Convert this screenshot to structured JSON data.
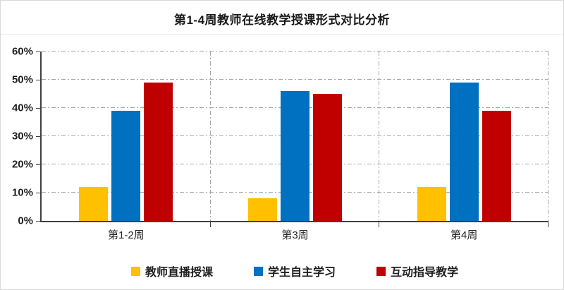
{
  "window": {
    "background": "#ffffff",
    "border_color": "#d9d9d9"
  },
  "chart_data": {
    "type": "bar",
    "title": "第1-4周教师在线教学授课形式对比分析",
    "categories": [
      "第1-2周",
      "第3周",
      "第4周"
    ],
    "series": [
      {
        "name": "教师直播授课",
        "color": "#FFC000",
        "values": [
          12,
          8,
          12
        ]
      },
      {
        "name": "学生自主学习",
        "color": "#0070C0",
        "values": [
          39,
          46,
          49
        ]
      },
      {
        "name": "互动指导教学",
        "color": "#C00000",
        "values": [
          49,
          45,
          39
        ]
      }
    ],
    "xlabel": "",
    "ylabel": "",
    "ylim": [
      0,
      60
    ],
    "ytick_step": 10,
    "ytick_labels": [
      "0%",
      "10%",
      "20%",
      "30%",
      "40%",
      "50%",
      "60%"
    ],
    "grid": {
      "style": "dash-dot",
      "color": "#a6a6a6",
      "horizontal": true,
      "vertical_section_dividers": true
    },
    "axis_color": "#404040",
    "legend_position": "bottom"
  }
}
